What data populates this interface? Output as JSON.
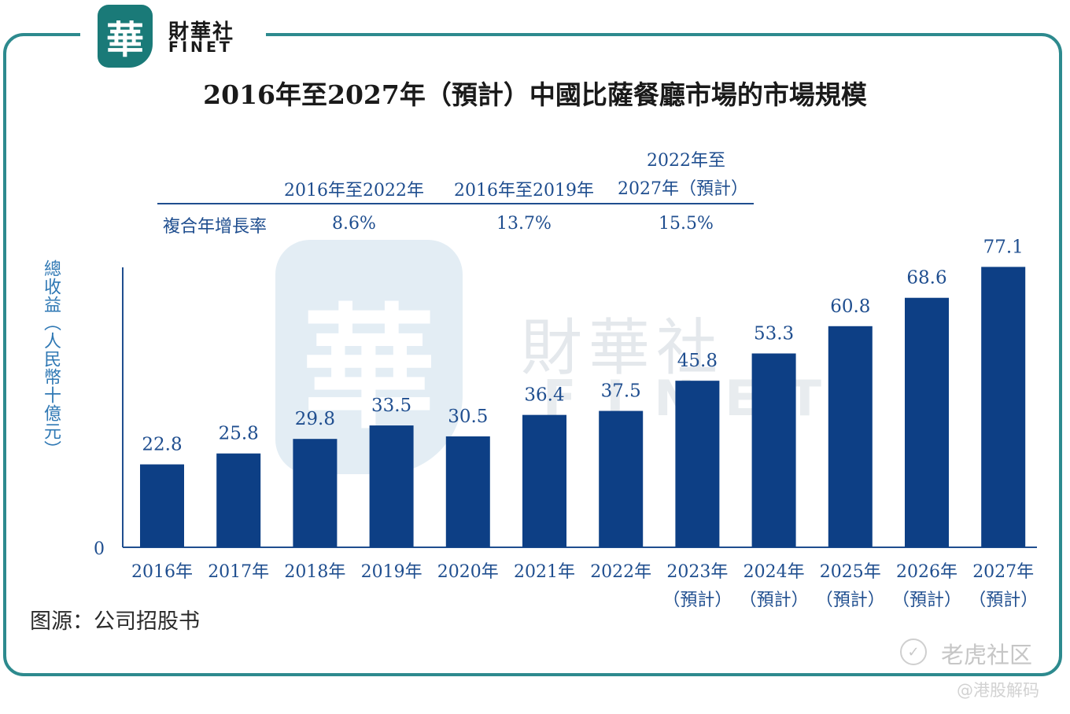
{
  "branding": {
    "logo_char": "華",
    "name_cn": "財華社",
    "name_en": "FINET"
  },
  "cagr_table": {
    "headers": [
      "2016年至2022年",
      "2016年至2019年",
      "2022年至",
      "2027年（預計）"
    ],
    "row_label": "複合年增長率",
    "values": [
      "8.6%",
      "13.7%",
      "15.5%"
    ]
  },
  "chart_data": {
    "type": "bar",
    "title": "2016年至2027年（預計）中國比薩餐廳市場的市場規模",
    "xlabel": "",
    "ylabel": "總收益（人民幣十億元）",
    "categories": [
      "2016年",
      "2017年",
      "2018年",
      "2019年",
      "2020年",
      "2021年",
      "2022年",
      "2023年",
      "2024年",
      "2025年",
      "2026年",
      "2027年"
    ],
    "forecast_labels": [
      "",
      "",
      "",
      "",
      "",
      "",
      "",
      "（預計）",
      "（預計）",
      "（預計）",
      "（預計）",
      "（預計）"
    ],
    "values": [
      22.8,
      25.8,
      29.8,
      33.5,
      30.5,
      36.4,
      37.5,
      45.8,
      53.3,
      60.8,
      68.6,
      77.1
    ],
    "value_labels": [
      "22.8",
      "25.8",
      "29.8",
      "33.5",
      "30.5",
      "36.4",
      "37.5",
      "45.8",
      "53.3",
      "60.8",
      "68.6",
      "77.1"
    ],
    "ylim": [
      0,
      80
    ],
    "zero_label": "0",
    "grid": false,
    "bar_color": "#0d3f85",
    "text_color": "#1f4e8f"
  },
  "source": "图源：公司招股书",
  "watermark": {
    "site": "老虎社区",
    "handle": "@港股解码",
    "icon": "tiger-icon"
  }
}
